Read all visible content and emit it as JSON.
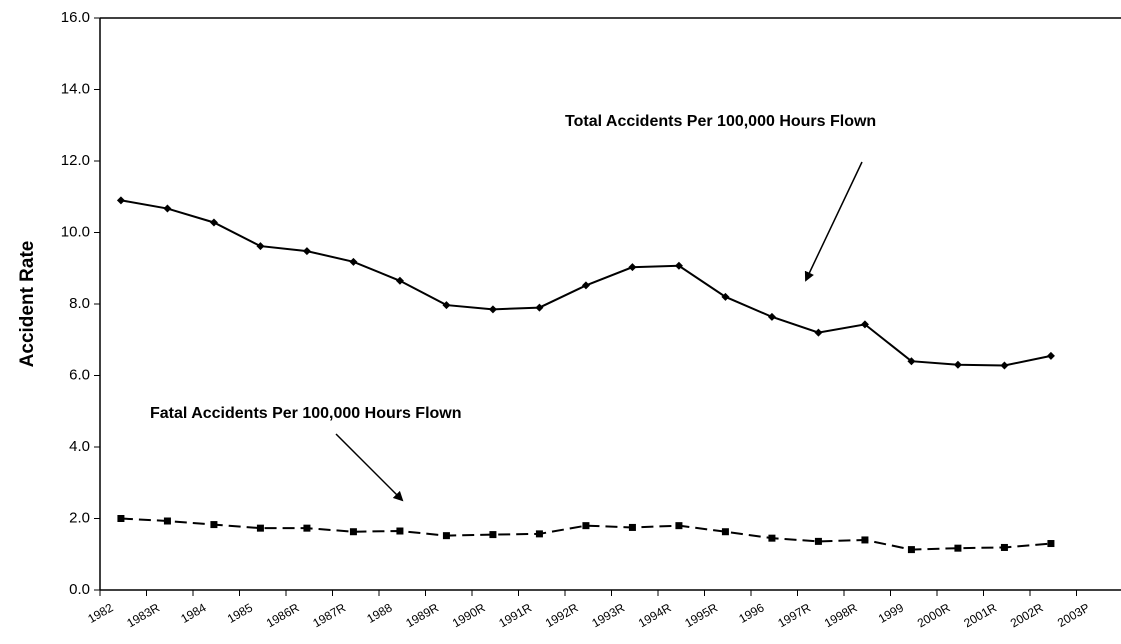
{
  "chart_data": {
    "type": "line",
    "y_label": "Accident Rate",
    "categories": [
      "1982",
      "1983R",
      "1984",
      "1985",
      "1986R",
      "1987R",
      "1988",
      "1989R",
      "1990R",
      "1991R",
      "1992R",
      "1993R",
      "1994R",
      "1995R",
      "1996",
      "1997R",
      "1998R",
      "1999",
      "2000R",
      "2001R",
      "2002R",
      "2003P"
    ],
    "series": [
      {
        "name": "Total Accidents Per 100,000 Hours Flown",
        "color": "#000000",
        "dash": false,
        "marker": "diamond",
        "values": [
          10.9,
          10.67,
          10.28,
          9.62,
          9.48,
          9.18,
          8.65,
          7.97,
          7.85,
          7.9,
          8.52,
          9.03,
          9.07,
          8.2,
          7.64,
          7.2,
          7.43,
          6.4,
          6.3,
          6.28,
          6.55,
          null
        ]
      },
      {
        "name": "Fatal Accidents Per 100,000 Hours Flown",
        "color": "#000000",
        "dash": true,
        "marker": "square",
        "values": [
          2.0,
          1.93,
          1.83,
          1.73,
          1.73,
          1.63,
          1.65,
          1.52,
          1.55,
          1.57,
          1.8,
          1.75,
          1.8,
          1.63,
          1.45,
          1.36,
          1.4,
          1.13,
          1.17,
          1.19,
          1.3,
          null
        ]
      }
    ],
    "ylim": [
      0,
      16
    ],
    "yticks": [
      {
        "value": 0,
        "label": "0.0"
      },
      {
        "value": 2,
        "label": "2.0"
      },
      {
        "value": 4,
        "label": "4.0"
      },
      {
        "value": 6,
        "label": "6.0"
      },
      {
        "value": 8,
        "label": "8.0"
      },
      {
        "value": 10,
        "label": "10.0"
      },
      {
        "value": 12,
        "label": "12.0"
      },
      {
        "value": 14,
        "label": "14.0"
      },
      {
        "value": 16,
        "label": "16.0"
      }
    ],
    "grid": false
  }
}
